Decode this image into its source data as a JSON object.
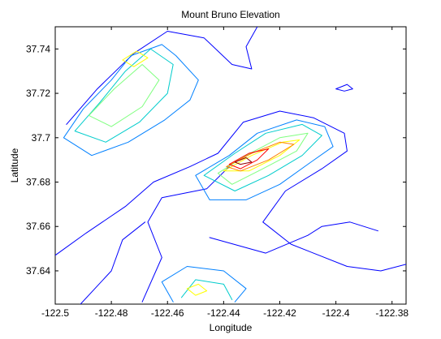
{
  "chart_data": {
    "type": "contour",
    "title": "Mount Bruno Elevation",
    "xlabel": "Longitude",
    "ylabel": "Latitude",
    "xlim": [
      -122.5,
      -122.375
    ],
    "ylim": [
      37.625,
      37.75
    ],
    "grid": false,
    "x_ticks": [
      -122.5,
      -122.48,
      -122.46,
      -122.44,
      -122.42,
      -122.4,
      -122.38
    ],
    "x_tick_labels": [
      "-122.5",
      "-122.48",
      "-122.46",
      "-122.44",
      "-122.42",
      "-122.4",
      "-122.38"
    ],
    "y_ticks": [
      37.64,
      37.66,
      37.68,
      37.7,
      37.72,
      37.74
    ],
    "y_tick_labels": [
      "37.64",
      "37.66",
      "37.68",
      "37.7",
      "37.72",
      "37.74"
    ],
    "colors": {
      "level_1": "#00008f",
      "level_2": "#0000ff",
      "level_3": "#0080ff",
      "level_4": "#00cccc",
      "level_5": "#80ff80",
      "level_6": "#ffff00",
      "level_7": "#ff8000",
      "level_8": "#ff0000",
      "level_9": "#8f0000"
    },
    "contours": [
      {
        "level": 1,
        "color": "#0000ff",
        "points": [
          [
            -122.496,
            37.706
          ],
          [
            -122.485,
            37.722
          ],
          [
            -122.472,
            37.738
          ],
          [
            -122.46,
            37.748
          ],
          [
            -122.447,
            37.745
          ],
          [
            -122.437,
            37.733
          ],
          [
            -122.43,
            37.731
          ],
          [
            -122.432,
            37.741
          ],
          [
            -122.428,
            37.75
          ]
        ]
      },
      {
        "level": 1,
        "color": "#0000ff",
        "points": [
          [
            -122.5,
            37.647
          ],
          [
            -122.489,
            37.657
          ],
          [
            -122.475,
            37.669
          ],
          [
            -122.465,
            37.68
          ],
          [
            -122.452,
            37.687
          ],
          [
            -122.442,
            37.693
          ],
          [
            -122.433,
            37.707
          ],
          [
            -122.42,
            37.712
          ],
          [
            -122.408,
            37.709
          ],
          [
            -122.397,
            37.702
          ],
          [
            -122.396,
            37.694
          ],
          [
            -122.405,
            37.686
          ],
          [
            -122.418,
            37.676
          ],
          [
            -122.426,
            37.662
          ],
          [
            -122.416,
            37.652
          ],
          [
            -122.396,
            37.642
          ],
          [
            -122.384,
            37.64
          ],
          [
            -122.375,
            37.643
          ]
        ]
      },
      {
        "level": 1,
        "color": "#0000ff",
        "points": [
          [
            -122.469,
            37.626
          ],
          [
            -122.462,
            37.646
          ],
          [
            -122.467,
            37.662
          ],
          [
            -122.462,
            37.673
          ],
          [
            -122.446,
            37.677
          ],
          [
            -122.438,
            37.687
          ]
        ]
      },
      {
        "level": 1,
        "color": "#0000ff",
        "points": [
          [
            -122.491,
            37.625
          ],
          [
            -122.48,
            37.64
          ],
          [
            -122.476,
            37.654
          ],
          [
            -122.468,
            37.662
          ]
        ]
      },
      {
        "level": 1,
        "color": "#0000ff",
        "points": [
          [
            -122.445,
            37.655
          ],
          [
            -122.425,
            37.648
          ],
          [
            -122.41,
            37.656
          ],
          [
            -122.405,
            37.66
          ],
          [
            -122.395,
            37.662
          ],
          [
            -122.385,
            37.658
          ]
        ]
      },
      {
        "level": 1,
        "color": "#0000ff",
        "points": [
          [
            -122.4,
            37.722
          ],
          [
            -122.397,
            37.721
          ],
          [
            -122.394,
            37.722
          ],
          [
            -122.396,
            37.724
          ],
          [
            -122.4,
            37.722
          ]
        ]
      },
      {
        "level": 2,
        "color": "#0080ff",
        "points": [
          [
            -122.497,
            37.7
          ],
          [
            -122.49,
            37.713
          ],
          [
            -122.48,
            37.726
          ],
          [
            -122.473,
            37.737
          ],
          [
            -122.462,
            37.742
          ],
          [
            -122.457,
            37.737
          ],
          [
            -122.449,
            37.726
          ],
          [
            -122.452,
            37.717
          ],
          [
            -122.461,
            37.708
          ],
          [
            -122.474,
            37.698
          ],
          [
            -122.487,
            37.692
          ],
          [
            -122.497,
            37.7
          ]
        ]
      },
      {
        "level": 2,
        "color": "#0080ff",
        "points": [
          [
            -122.45,
            37.683
          ],
          [
            -122.438,
            37.692
          ],
          [
            -122.428,
            37.702
          ],
          [
            -122.414,
            37.708
          ],
          [
            -122.404,
            37.705
          ],
          [
            -122.401,
            37.696
          ],
          [
            -122.41,
            37.688
          ],
          [
            -122.42,
            37.679
          ],
          [
            -122.432,
            37.672
          ],
          [
            -122.445,
            37.672
          ],
          [
            -122.45,
            37.683
          ]
        ]
      },
      {
        "level": 2,
        "color": "#0080ff",
        "points": [
          [
            -122.458,
            37.626
          ],
          [
            -122.462,
            37.635
          ],
          [
            -122.453,
            37.642
          ],
          [
            -122.44,
            37.64
          ],
          [
            -122.432,
            37.632
          ],
          [
            -122.436,
            37.626
          ]
        ]
      },
      {
        "level": 3,
        "color": "#00cccc",
        "points": [
          [
            -122.493,
            37.703
          ],
          [
            -122.484,
            37.716
          ],
          [
            -122.475,
            37.73
          ],
          [
            -122.466,
            37.74
          ],
          [
            -122.458,
            37.733
          ],
          [
            -122.46,
            37.72
          ],
          [
            -122.47,
            37.707
          ],
          [
            -122.482,
            37.698
          ],
          [
            -122.493,
            37.703
          ]
        ]
      },
      {
        "level": 3,
        "color": "#00cccc",
        "points": [
          [
            -122.447,
            37.683
          ],
          [
            -122.436,
            37.693
          ],
          [
            -122.425,
            37.702
          ],
          [
            -122.412,
            37.706
          ],
          [
            -122.405,
            37.701
          ],
          [
            -122.412,
            37.692
          ],
          [
            -122.424,
            37.683
          ],
          [
            -122.436,
            37.676
          ],
          [
            -122.447,
            37.683
          ]
        ]
      },
      {
        "level": 3,
        "color": "#00cccc",
        "points": [
          [
            -122.455,
            37.628
          ],
          [
            -122.45,
            37.636
          ],
          [
            -122.44,
            37.634
          ],
          [
            -122.437,
            37.627
          ]
        ]
      },
      {
        "level": 4,
        "color": "#80ff80",
        "points": [
          [
            -122.488,
            37.71
          ],
          [
            -122.479,
            37.722
          ],
          [
            -122.469,
            37.733
          ],
          [
            -122.463,
            37.726
          ],
          [
            -122.469,
            37.714
          ],
          [
            -122.48,
            37.705
          ],
          [
            -122.488,
            37.71
          ]
        ]
      },
      {
        "level": 4,
        "color": "#80ff80",
        "points": [
          [
            -122.442,
            37.684
          ],
          [
            -122.432,
            37.692
          ],
          [
            -122.42,
            37.7
          ],
          [
            -122.41,
            37.702
          ],
          [
            -122.414,
            37.694
          ],
          [
            -122.426,
            37.686
          ],
          [
            -122.437,
            37.679
          ],
          [
            -122.442,
            37.684
          ]
        ]
      },
      {
        "level": 5,
        "color": "#ffff00",
        "points": [
          [
            -122.476,
            37.735
          ],
          [
            -122.471,
            37.739
          ],
          [
            -122.467,
            37.736
          ],
          [
            -122.472,
            37.732
          ],
          [
            -122.476,
            37.735
          ]
        ]
      },
      {
        "level": 5,
        "color": "#ffff00",
        "points": [
          [
            -122.44,
            37.685
          ],
          [
            -122.43,
            37.692
          ],
          [
            -122.419,
            37.698
          ],
          [
            -122.413,
            37.699
          ],
          [
            -122.42,
            37.692
          ],
          [
            -122.431,
            37.685
          ],
          [
            -122.44,
            37.685
          ]
        ]
      },
      {
        "level": 5,
        "color": "#ffff00",
        "points": [
          [
            -122.453,
            37.632
          ],
          [
            -122.449,
            37.634
          ],
          [
            -122.446,
            37.631
          ],
          [
            -122.45,
            37.629
          ],
          [
            -122.453,
            37.632
          ]
        ]
      },
      {
        "level": 6,
        "color": "#ff8000",
        "points": [
          [
            -122.439,
            37.687
          ],
          [
            -122.43,
            37.693
          ],
          [
            -122.42,
            37.698
          ],
          [
            -122.415,
            37.697
          ],
          [
            -122.424,
            37.69
          ],
          [
            -122.434,
            37.685
          ],
          [
            -122.439,
            37.687
          ]
        ]
      },
      {
        "level": 7,
        "color": "#ff0000",
        "points": [
          [
            -122.438,
            37.688
          ],
          [
            -122.431,
            37.693
          ],
          [
            -122.424,
            37.695
          ],
          [
            -122.428,
            37.69
          ],
          [
            -122.434,
            37.686
          ],
          [
            -122.438,
            37.688
          ]
        ]
      },
      {
        "level": 8,
        "color": "#8f0000",
        "points": [
          [
            -122.436,
            37.689
          ],
          [
            -122.432,
            37.691
          ],
          [
            -122.43,
            37.689
          ],
          [
            -122.434,
            37.688
          ],
          [
            -122.436,
            37.689
          ]
        ]
      }
    ]
  }
}
